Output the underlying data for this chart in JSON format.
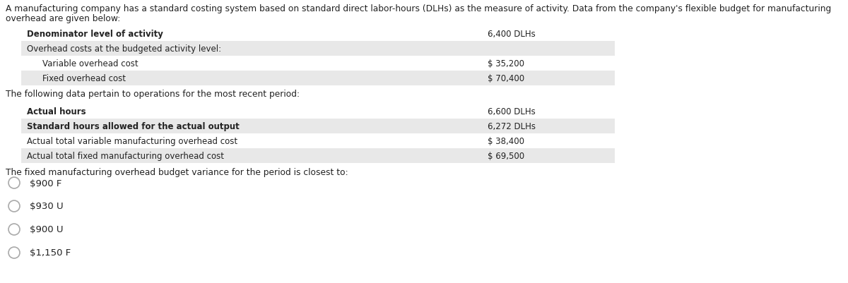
{
  "intro_line1": "A manufacturing company has a standard costing system based on standard direct labor-hours (DLHs) as the measure of activity. Data from the company's flexible budget for manufacturing",
  "intro_line2": "overhead are given below:",
  "table1": {
    "rows": [
      {
        "label": "Denominator level of activity",
        "value": "6,400 DLHs",
        "bold": true,
        "shaded": false,
        "indent": 1
      },
      {
        "label": "Overhead costs at the budgeted activity level:",
        "value": "",
        "bold": false,
        "shaded": true,
        "indent": 1
      },
      {
        "label": "Variable overhead cost",
        "value": "$ 35,200",
        "bold": false,
        "shaded": false,
        "indent": 2
      },
      {
        "label": "Fixed overhead cost",
        "value": "$ 70,400",
        "bold": false,
        "shaded": true,
        "indent": 2
      }
    ]
  },
  "mid_text": "The following data pertain to operations for the most recent period:",
  "table2": {
    "rows": [
      {
        "label": "Actual hours",
        "value": "6,600 DLHs",
        "bold": true,
        "shaded": false,
        "indent": 1
      },
      {
        "label": "Standard hours allowed for the actual output",
        "value": "6,272 DLHs",
        "bold": true,
        "shaded": true,
        "indent": 1
      },
      {
        "label": "Actual total variable manufacturing overhead cost",
        "value": "$ 38,400",
        "bold": false,
        "shaded": false,
        "indent": 1
      },
      {
        "label": "Actual total fixed manufacturing overhead cost",
        "value": "$ 69,500",
        "bold": false,
        "shaded": true,
        "indent": 1
      }
    ]
  },
  "question_text": "The fixed manufacturing overhead budget variance for the period is closest to:",
  "choices": [
    "$900 F",
    "$930 U",
    "$900 U",
    "$1,150 F"
  ],
  "bg_color": "#ffffff",
  "table_shade_color": "#e8e8e8",
  "text_color": "#222222",
  "value_color": "#222222",
  "font_size_intro": 8.8,
  "font_size_table": 8.5,
  "font_size_question": 8.8,
  "font_size_choices": 9.5,
  "circle_color": "#aaaaaa"
}
